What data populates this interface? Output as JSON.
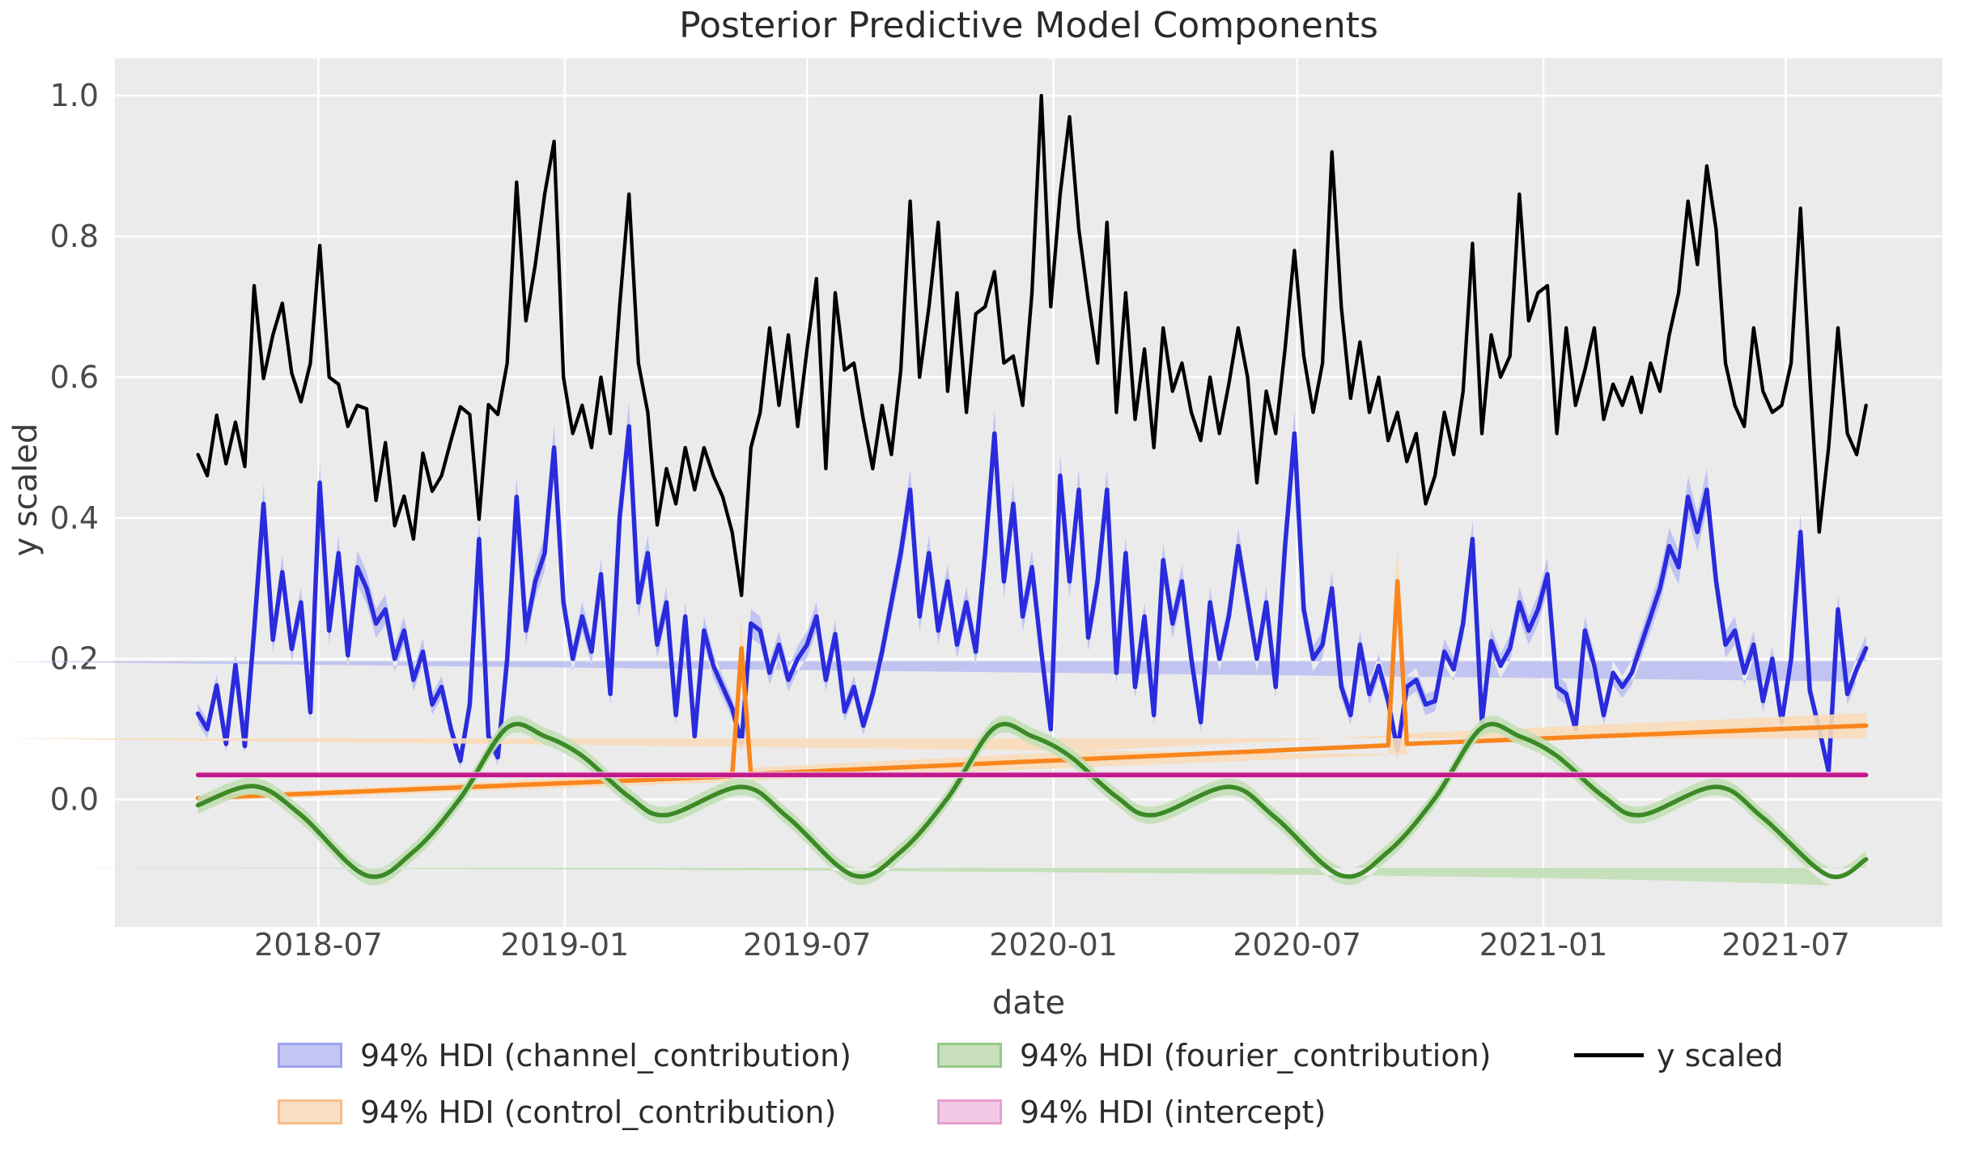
{
  "figure": {
    "background": "#ffffff"
  },
  "axes": {
    "background": "#ebebeb",
    "grid_color": "#ffffff",
    "tick_color": "#4a4a4a",
    "label_color": "#3c3c3c",
    "title_color": "#2b2b2b"
  },
  "legend": {
    "items": [
      {
        "id": "channel",
        "label": "94% HDI (channel_contribution)",
        "swatch": "patch",
        "fill": "#c3c5f3",
        "edge": "#9ea2ee",
        "column": 0,
        "row": 0
      },
      {
        "id": "control",
        "label": "94% HDI (control_contribution)",
        "swatch": "patch",
        "fill": "#fbdfc2",
        "edge": "#f6be8c",
        "column": 0,
        "row": 1
      },
      {
        "id": "fourier",
        "label": "94% HDI (fourier_contribution)",
        "swatch": "patch",
        "fill": "#c8e0bc",
        "edge": "#96c88a",
        "column": 1,
        "row": 0
      },
      {
        "id": "intercept",
        "label": "94% HDI (intercept)",
        "swatch": "patch",
        "fill": "#f2c8e4",
        "edge": "#e49ed0",
        "column": 1,
        "row": 1
      },
      {
        "id": "y_scaled",
        "label": "y scaled",
        "swatch": "line",
        "fill": "#000000",
        "edge": "#000000",
        "column": 2,
        "row": 0
      }
    ]
  },
  "chart_data": {
    "type": "line",
    "title": "Posterior Predictive Model Components",
    "xlabel": "date",
    "ylabel": "y scaled",
    "grid": true,
    "legend_position": "bottom",
    "xlim": [
      "2018-01-30",
      "2021-10-26"
    ],
    "ylim": [
      -0.181,
      1.053
    ],
    "y_ticks": [
      0.0,
      0.2,
      0.4,
      0.6,
      0.8,
      1.0
    ],
    "x_ticks": [
      {
        "date": "2018-07-01",
        "label": "2018-07"
      },
      {
        "date": "2019-01-01",
        "label": "2019-01"
      },
      {
        "date": "2019-07-01",
        "label": "2019-07"
      },
      {
        "date": "2020-01-01",
        "label": "2020-01"
      },
      {
        "date": "2020-07-01",
        "label": "2020-07"
      },
      {
        "date": "2021-01-01",
        "label": "2021-01"
      },
      {
        "date": "2021-07-01",
        "label": "2021-07"
      }
    ],
    "weekly": {
      "start_date": "2018-04-02",
      "step_days": 7,
      "n_points": 179
    },
    "series": [
      {
        "id": "channel",
        "name": "94% HDI (channel_contribution)",
        "kind": "hdi_line",
        "color": "#2a2bdc",
        "band_color": "#bdc0f2",
        "hdi_base": 0.008,
        "hdi_per_value": 0.05,
        "values": [
          0.122,
          0.1,
          0.162,
          0.079,
          0.191,
          0.076,
          0.24,
          0.42,
          0.227,
          0.323,
          0.214,
          0.28,
          0.124,
          0.45,
          0.24,
          0.35,
          0.205,
          0.33,
          0.3,
          0.25,
          0.27,
          0.2,
          0.24,
          0.17,
          0.21,
          0.135,
          0.16,
          0.1,
          0.055,
          0.135,
          0.37,
          0.09,
          0.06,
          0.2,
          0.43,
          0.24,
          0.31,
          0.35,
          0.5,
          0.28,
          0.2,
          0.26,
          0.21,
          0.32,
          0.15,
          0.4,
          0.53,
          0.28,
          0.35,
          0.22,
          0.28,
          0.12,
          0.26,
          0.09,
          0.24,
          0.19,
          0.16,
          0.13,
          0.08,
          0.25,
          0.24,
          0.18,
          0.22,
          0.17,
          0.2,
          0.22,
          0.26,
          0.17,
          0.235,
          0.125,
          0.16,
          0.105,
          0.15,
          0.21,
          0.28,
          0.35,
          0.44,
          0.26,
          0.35,
          0.24,
          0.31,
          0.22,
          0.28,
          0.21,
          0.35,
          0.52,
          0.31,
          0.42,
          0.26,
          0.33,
          0.21,
          0.1,
          0.46,
          0.31,
          0.44,
          0.23,
          0.31,
          0.44,
          0.18,
          0.35,
          0.16,
          0.26,
          0.12,
          0.34,
          0.25,
          0.31,
          0.2,
          0.11,
          0.28,
          0.2,
          0.26,
          0.36,
          0.28,
          0.2,
          0.28,
          0.16,
          0.36,
          0.52,
          0.27,
          0.2,
          0.22,
          0.3,
          0.16,
          0.12,
          0.22,
          0.15,
          0.19,
          0.14,
          0.07,
          0.16,
          0.17,
          0.135,
          0.14,
          0.21,
          0.185,
          0.25,
          0.37,
          0.11,
          0.225,
          0.19,
          0.215,
          0.28,
          0.24,
          0.27,
          0.32,
          0.16,
          0.15,
          0.1,
          0.24,
          0.19,
          0.12,
          0.18,
          0.16,
          0.18,
          0.22,
          0.26,
          0.3,
          0.36,
          0.33,
          0.43,
          0.38,
          0.44,
          0.31,
          0.22,
          0.24,
          0.18,
          0.22,
          0.14,
          0.2,
          0.11,
          0.2,
          0.38,
          0.155,
          0.1,
          0.04,
          0.27,
          0.15,
          0.185,
          0.215
        ]
      },
      {
        "id": "control",
        "name": "94% HDI (control_contribution)",
        "kind": "hdi_anchors",
        "color": "#f8861d",
        "band_color": "#fadcba",
        "smooth": false,
        "anchors": [
          [
            "2018-04-02",
            0.002,
            0.004
          ],
          [
            "2019-05-06",
            0.033,
            0.008
          ],
          [
            "2019-05-13",
            0.215,
            0.05
          ],
          [
            "2019-05-20",
            0.036,
            0.009
          ],
          [
            "2020-09-07",
            0.077,
            0.014
          ],
          [
            "2020-09-14",
            0.31,
            0.055
          ],
          [
            "2020-09-21",
            0.079,
            0.015
          ],
          [
            "2021-08-30",
            0.105,
            0.018
          ]
        ]
      },
      {
        "id": "fourier",
        "name": "94% HDI (fourier_contribution)",
        "kind": "hdi_anchors",
        "color": "#3b8a26",
        "band_color": "#c2dfb6",
        "smooth": true,
        "hdi_hw": 0.012,
        "anchors": [
          [
            "2018-04-02",
            -0.008
          ],
          [
            "2018-05-14",
            0.019
          ],
          [
            "2018-06-18",
            -0.022
          ],
          [
            "2018-08-06",
            -0.108
          ],
          [
            "2018-09-10",
            -0.074
          ],
          [
            "2018-10-15",
            0.002
          ],
          [
            "2018-11-19",
            0.102
          ],
          [
            "2018-12-17",
            0.09
          ],
          [
            "2019-01-14",
            0.062
          ],
          [
            "2019-02-18",
            0.004
          ],
          [
            "2019-03-18",
            -0.022
          ],
          [
            "2019-05-13",
            0.018
          ],
          [
            "2019-06-17",
            -0.026
          ],
          [
            "2019-08-05",
            -0.108
          ],
          [
            "2019-09-09",
            -0.074
          ],
          [
            "2019-10-14",
            0.002
          ],
          [
            "2019-11-18",
            0.102
          ],
          [
            "2019-12-16",
            0.09
          ],
          [
            "2020-01-13",
            0.062
          ],
          [
            "2020-02-17",
            0.004
          ],
          [
            "2020-03-16",
            -0.022
          ],
          [
            "2020-05-11",
            0.018
          ],
          [
            "2020-06-15",
            -0.026
          ],
          [
            "2020-08-03",
            -0.108
          ],
          [
            "2020-09-07",
            -0.074
          ],
          [
            "2020-10-12",
            0.002
          ],
          [
            "2020-11-16",
            0.102
          ],
          [
            "2020-12-14",
            0.09
          ],
          [
            "2021-01-11",
            0.062
          ],
          [
            "2021-02-15",
            0.004
          ],
          [
            "2021-03-15",
            -0.022
          ],
          [
            "2021-05-10",
            0.018
          ],
          [
            "2021-06-14",
            -0.026
          ],
          [
            "2021-08-02",
            -0.108
          ],
          [
            "2021-08-30",
            -0.085
          ]
        ]
      },
      {
        "id": "intercept",
        "name": "94% HDI (intercept)",
        "kind": "hdi_anchors",
        "color": "#c2188c",
        "band_color": "#f2c3e3",
        "smooth": false,
        "hdi_hw": 0.0045,
        "anchors": [
          [
            "2018-04-02",
            0.035
          ],
          [
            "2021-08-30",
            0.035
          ]
        ]
      },
      {
        "id": "y_scaled",
        "name": "y scaled",
        "kind": "line",
        "color": "#000000",
        "values": [
          0.49,
          0.46,
          0.546,
          0.477,
          0.536,
          0.473,
          0.73,
          0.598,
          0.66,
          0.705,
          0.606,
          0.565,
          0.62,
          0.787,
          0.6,
          0.59,
          0.53,
          0.56,
          0.555,
          0.425,
          0.507,
          0.389,
          0.431,
          0.37,
          0.492,
          0.438,
          0.46,
          0.51,
          0.558,
          0.547,
          0.398,
          0.561,
          0.547,
          0.62,
          0.877,
          0.68,
          0.76,
          0.86,
          0.935,
          0.6,
          0.52,
          0.56,
          0.5,
          0.6,
          0.52,
          0.7,
          0.86,
          0.62,
          0.55,
          0.39,
          0.47,
          0.42,
          0.5,
          0.44,
          0.5,
          0.46,
          0.43,
          0.38,
          0.29,
          0.5,
          0.55,
          0.67,
          0.56,
          0.66,
          0.53,
          0.64,
          0.74,
          0.47,
          0.72,
          0.61,
          0.62,
          0.54,
          0.47,
          0.56,
          0.49,
          0.61,
          0.85,
          0.6,
          0.7,
          0.82,
          0.58,
          0.72,
          0.55,
          0.69,
          0.7,
          0.75,
          0.62,
          0.63,
          0.56,
          0.72,
          1.0,
          0.7,
          0.86,
          0.97,
          0.81,
          0.71,
          0.62,
          0.82,
          0.55,
          0.72,
          0.54,
          0.64,
          0.5,
          0.67,
          0.58,
          0.62,
          0.55,
          0.51,
          0.6,
          0.52,
          0.59,
          0.67,
          0.6,
          0.45,
          0.58,
          0.52,
          0.64,
          0.78,
          0.63,
          0.55,
          0.62,
          0.92,
          0.7,
          0.57,
          0.65,
          0.55,
          0.6,
          0.51,
          0.55,
          0.48,
          0.52,
          0.42,
          0.46,
          0.55,
          0.49,
          0.58,
          0.79,
          0.52,
          0.66,
          0.6,
          0.63,
          0.86,
          0.68,
          0.72,
          0.73,
          0.52,
          0.67,
          0.56,
          0.61,
          0.67,
          0.54,
          0.59,
          0.56,
          0.6,
          0.55,
          0.62,
          0.58,
          0.66,
          0.72,
          0.85,
          0.76,
          0.9,
          0.81,
          0.62,
          0.56,
          0.53,
          0.67,
          0.58,
          0.55,
          0.56,
          0.62,
          0.84,
          0.6,
          0.38,
          0.5,
          0.67,
          0.52,
          0.49,
          0.56
        ]
      }
    ]
  }
}
